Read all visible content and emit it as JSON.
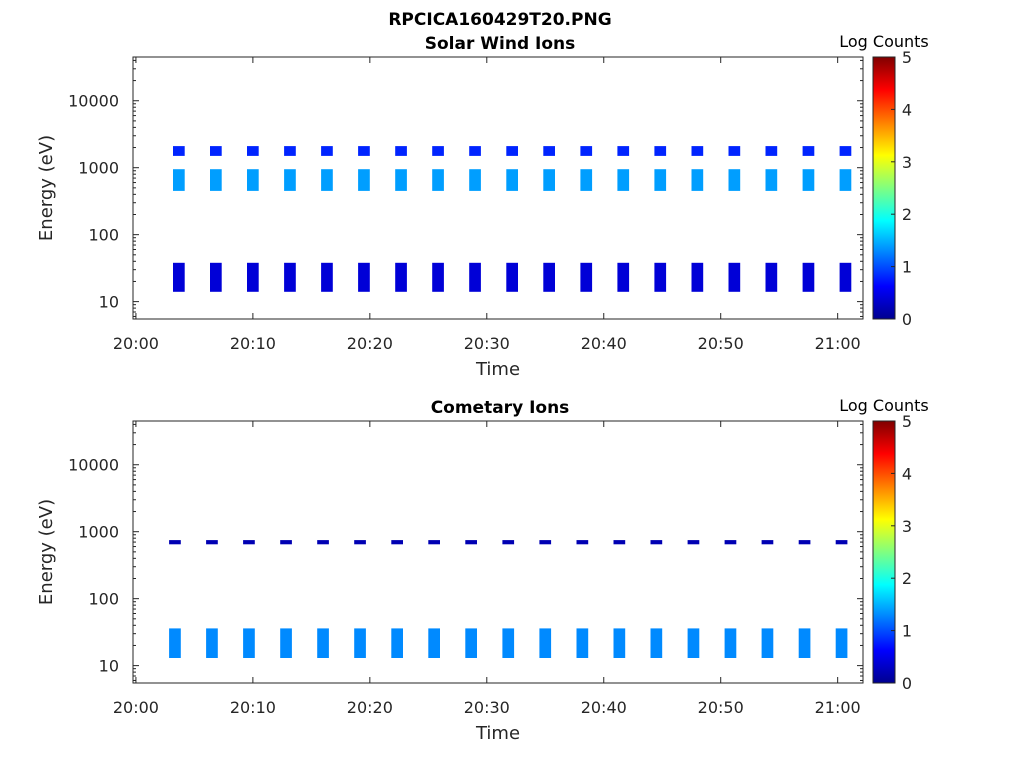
{
  "figure": {
    "title": "RPCICA160429T20.PNG"
  },
  "colormap": [
    "#00008f",
    "#0000ff",
    "#0080ff",
    "#00ffff",
    "#80ff80",
    "#ffff00",
    "#ff8000",
    "#ff0000",
    "#800000"
  ],
  "chart_data": [
    {
      "type": "heatmap",
      "title": "Solar Wind Ions",
      "xlabel": "Time",
      "ylabel": "Energy (eV)",
      "xlim": [
        "19:59:45",
        "21:02:10"
      ],
      "ylim": [
        5.5,
        45000
      ],
      "yscale": "log",
      "xticks": [
        "20:00",
        "20:10",
        "20:20",
        "20:30",
        "20:40",
        "20:50",
        "21:00"
      ],
      "yticks": [
        "10",
        "100",
        "1000",
        "10000"
      ],
      "colorbar": {
        "label": "Log Counts",
        "ticks": [
          "0",
          "1",
          "2",
          "3",
          "4",
          "5"
        ],
        "range": [
          0,
          5
        ]
      },
      "sweep_starts": [
        "20:03:10",
        "20:06:20",
        "20:09:30",
        "20:12:40",
        "20:15:50",
        "20:19:00",
        "20:22:10",
        "20:25:20",
        "20:28:30",
        "20:31:40",
        "20:34:50",
        "20:38:00",
        "20:41:10",
        "20:44:20",
        "20:47:30",
        "20:50:40",
        "20:53:50",
        "20:57:00",
        "21:00:10"
      ],
      "bands": [
        {
          "energy_ev": [
            1500,
            2100
          ],
          "log_counts": 0.8
        },
        {
          "energy_ev": [
            450,
            950
          ],
          "log_counts": 1.4
        },
        {
          "energy_ev": [
            14,
            38
          ],
          "log_counts": 0.4
        }
      ]
    },
    {
      "type": "heatmap",
      "title": "Cometary Ions",
      "xlabel": "Time",
      "ylabel": "Energy (eV)",
      "xlim": [
        "19:59:45",
        "21:02:10"
      ],
      "ylim": [
        5.5,
        45000
      ],
      "yscale": "log",
      "xticks": [
        "20:00",
        "20:10",
        "20:20",
        "20:30",
        "20:40",
        "20:50",
        "21:00"
      ],
      "yticks": [
        "10",
        "100",
        "1000",
        "10000"
      ],
      "colorbar": {
        "label": "Log Counts",
        "ticks": [
          "0",
          "1",
          "2",
          "3",
          "4",
          "5"
        ],
        "range": [
          0,
          5
        ]
      },
      "sweep_starts": [
        "20:02:50",
        "20:06:00",
        "20:09:10",
        "20:12:20",
        "20:15:30",
        "20:18:40",
        "20:21:50",
        "20:25:00",
        "20:28:10",
        "20:31:20",
        "20:34:30",
        "20:37:40",
        "20:40:50",
        "20:44:00",
        "20:47:10",
        "20:50:20",
        "20:53:30",
        "20:56:40",
        "20:59:50"
      ],
      "bands": [
        {
          "energy_ev": [
            650,
            750
          ],
          "log_counts": 0.2
        },
        {
          "energy_ev": [
            13,
            36
          ],
          "log_counts": 1.3
        }
      ]
    }
  ]
}
